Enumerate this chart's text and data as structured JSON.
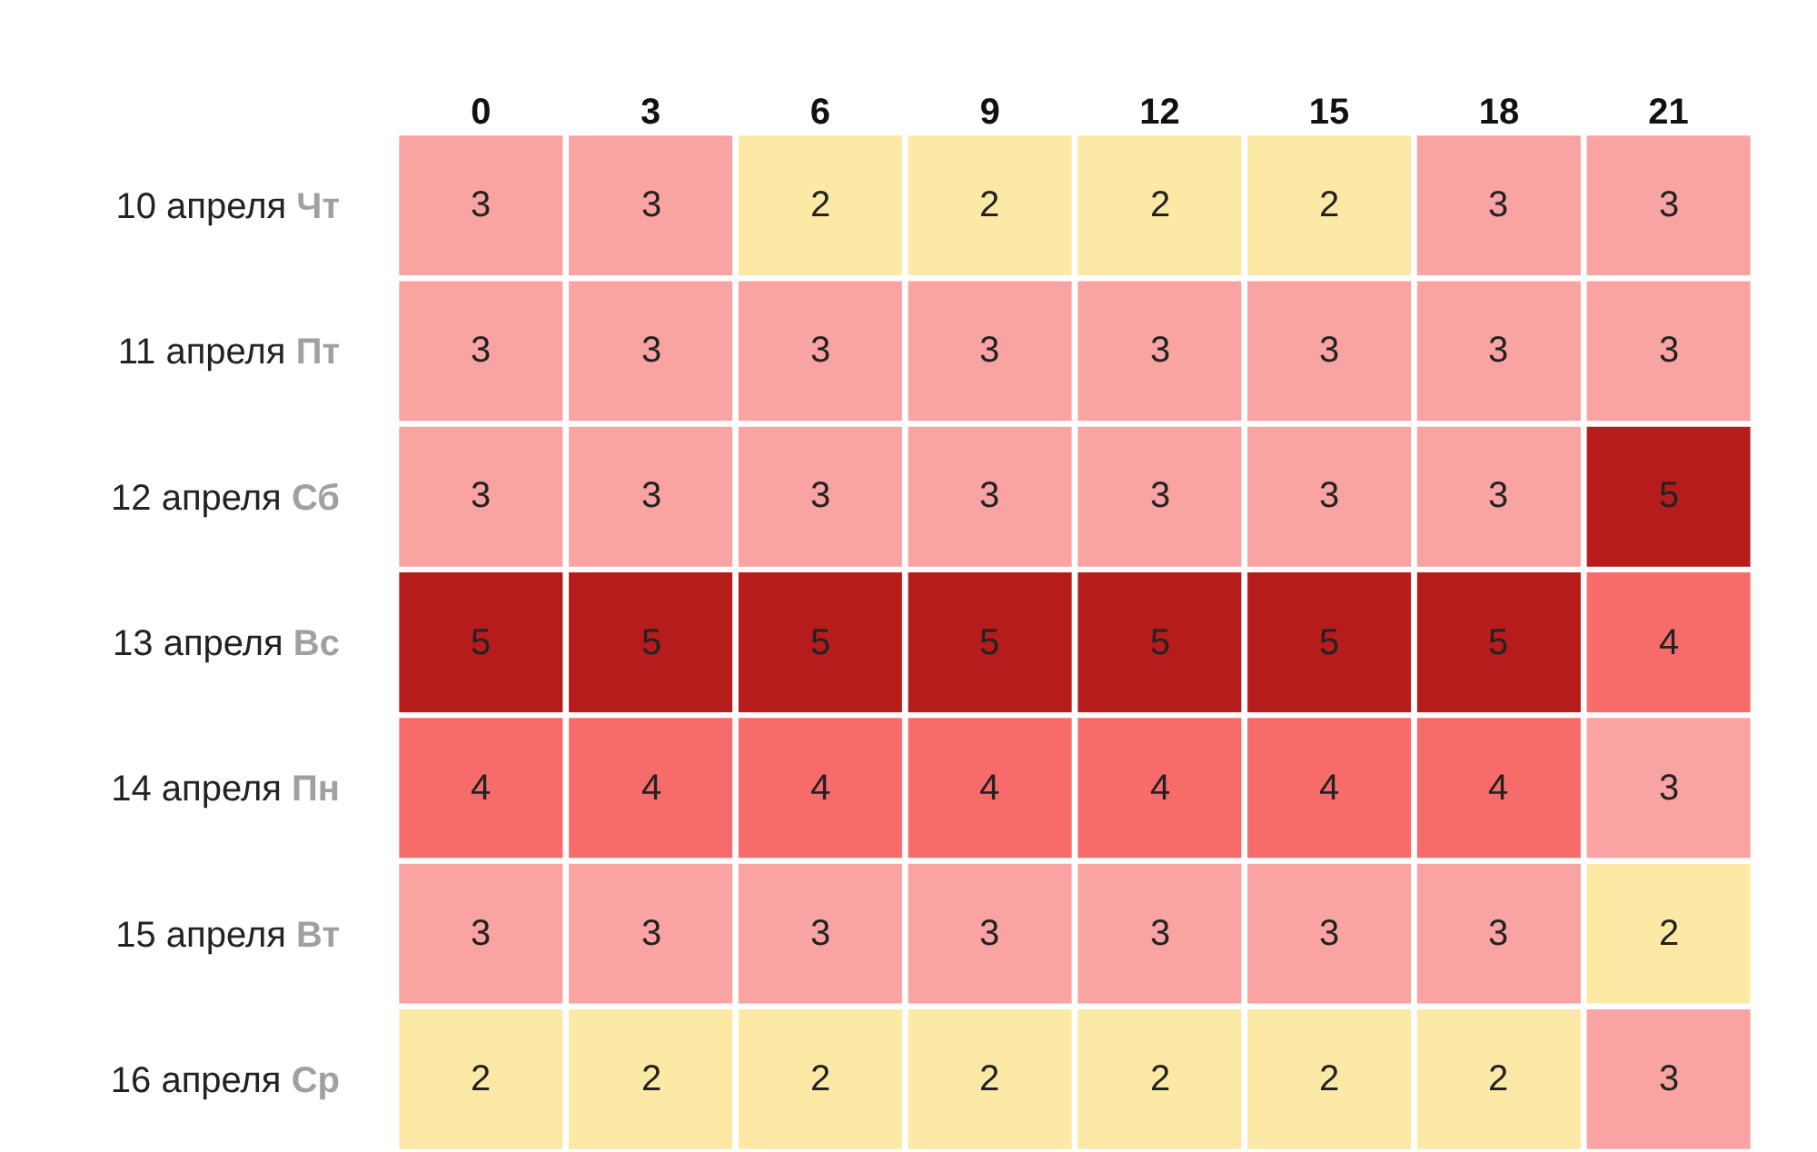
{
  "chart_data": {
    "type": "heatmap",
    "categories": [
      "0",
      "3",
      "6",
      "9",
      "12",
      "15",
      "18",
      "21"
    ],
    "y_categories": [
      "10 апреля",
      "11 апреля",
      "12 апреля",
      "13 апреля",
      "14 апреля",
      "15 апреля",
      "16 апреля"
    ],
    "y2_categories": [
      "Чт",
      "Пт",
      "Сб",
      "Вс",
      "Пн",
      "Вт",
      "Ср"
    ],
    "cells": [
      [
        3,
        3,
        2,
        2,
        2,
        2,
        3,
        3
      ],
      [
        3,
        3,
        3,
        3,
        3,
        3,
        3,
        3
      ],
      [
        3,
        3,
        3,
        3,
        3,
        3,
        3,
        5
      ],
      [
        5,
        5,
        5,
        5,
        5,
        5,
        5,
        4
      ],
      [
        4,
        4,
        4,
        4,
        4,
        4,
        4,
        3
      ],
      [
        3,
        3,
        3,
        3,
        3,
        3,
        3,
        2
      ],
      [
        2,
        2,
        2,
        2,
        2,
        2,
        2,
        3
      ]
    ],
    "colors": [
      "#fde9a6",
      "#f9a3a3",
      "#f76b6b",
      "#b71c1c"
    ],
    "data_labels": true
  }
}
